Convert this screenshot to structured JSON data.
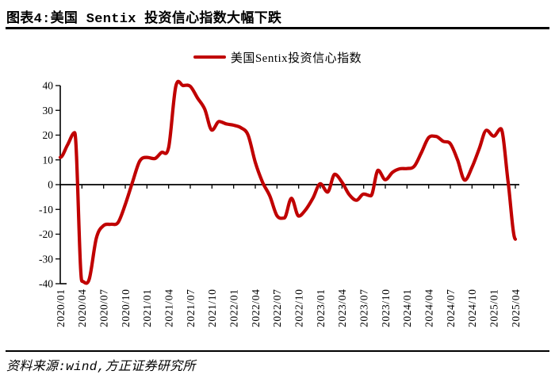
{
  "page": {
    "figure_title": "图表4:美国 Sentix 投资信心指数大幅下跌",
    "source_note": "资料来源:wind,方正证券研究所"
  },
  "colors": {
    "line": "#C00000",
    "axis": "#000000",
    "text": "#000000",
    "background": "#ffffff"
  },
  "legend": [
    {
      "label": "美国Sentix投资信心指数",
      "color": "#C00000",
      "swatch": "line"
    }
  ],
  "chart_data": {
    "type": "line",
    "title": "",
    "xlabel": "",
    "ylabel": "",
    "ylim": [
      -40,
      40
    ],
    "y_ticks": [
      40,
      30,
      20,
      10,
      0,
      -10,
      -20,
      -30,
      -40
    ],
    "grid": false,
    "zero_axis_with_ticks": true,
    "legend_position": "top-center",
    "x_frequency": "monthly",
    "x_tick_every_months": 3,
    "x_tick_labels": [
      "2020/01",
      "2020/04",
      "2020/07",
      "2020/10",
      "2021/01",
      "2021/04",
      "2021/07",
      "2021/10",
      "2022/01",
      "2022/04",
      "2022/07",
      "2022/10",
      "2023/01",
      "2023/04",
      "2023/07",
      "2023/10",
      "2024/01",
      "2024/04",
      "2024/07",
      "2024/10",
      "2025/01",
      "2025/04"
    ],
    "x": [
      "2020/01",
      "2020/02",
      "2020/03",
      "2020/04",
      "2020/05",
      "2020/06",
      "2020/07",
      "2020/08",
      "2020/09",
      "2020/10",
      "2020/11",
      "2020/12",
      "2021/01",
      "2021/02",
      "2021/03",
      "2021/04",
      "2021/05",
      "2021/06",
      "2021/07",
      "2021/08",
      "2021/09",
      "2021/10",
      "2021/11",
      "2021/12",
      "2022/01",
      "2022/02",
      "2022/03",
      "2022/04",
      "2022/05",
      "2022/06",
      "2022/07",
      "2022/08",
      "2022/09",
      "2022/10",
      "2022/11",
      "2022/12",
      "2023/01",
      "2023/02",
      "2023/03",
      "2023/04",
      "2023/05",
      "2023/06",
      "2023/07",
      "2023/08",
      "2023/09",
      "2023/10",
      "2023/11",
      "2023/12",
      "2024/01",
      "2024/02",
      "2024/03",
      "2024/04",
      "2024/05",
      "2024/06",
      "2024/07",
      "2024/08",
      "2024/09",
      "2024/10",
      "2024/11",
      "2024/12",
      "2025/01",
      "2025/02",
      "2025/03",
      "2025/04"
    ],
    "series": [
      {
        "name": "美国Sentix投资信心指数",
        "color": "#C00000",
        "values": [
          11,
          16,
          21,
          -39,
          -38.3,
          -21.5,
          -16.5,
          -16,
          -15.3,
          -8,
          1,
          9.5,
          11,
          10.5,
          13,
          15,
          39.8,
          40,
          39.7,
          35,
          30.5,
          22,
          25.5,
          24.5,
          24,
          23,
          20,
          9,
          1,
          -4.5,
          -12.5,
          -13.5,
          -5.5,
          -12.7,
          -10,
          -5.3,
          0.4,
          -3,
          4.2,
          1,
          -4,
          -6.3,
          -3.8,
          -4.5,
          5.8,
          2,
          5,
          6.4,
          6.5,
          7.4,
          13,
          19,
          19.5,
          17.5,
          16.5,
          10,
          1.8,
          7,
          14.5,
          22,
          19.6,
          22.6,
          1,
          -22
        ]
      }
    ]
  }
}
